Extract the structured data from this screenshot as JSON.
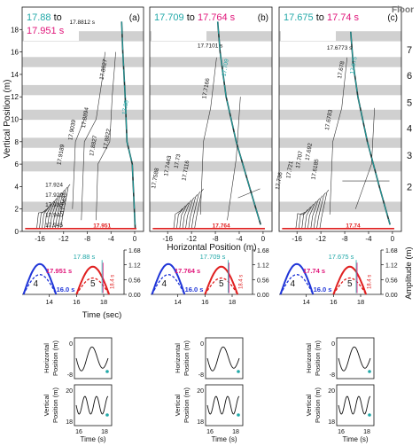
{
  "figure": {
    "floor_header": "Floor",
    "floor_labels": [
      "2",
      "3",
      "4",
      "5",
      "6",
      "7"
    ],
    "main_ylabel": "Vertical Position (m)",
    "main_xlabel": "Horizontal Position (m)",
    "amp_xlabel": "Time (sec)",
    "amp_ylabel": "Amplitude (m)",
    "small_xlabel": "Time (s)",
    "small_ylabel_top": [
      "Horizontal",
      "Position (m)"
    ],
    "small_ylabel_bottom": [
      "Vertical",
      "Position (m)"
    ],
    "colors": {
      "cyan": "#21a8a8",
      "magenta": "#e0157a",
      "red": "#e02020",
      "blue": "#1f35d8",
      "dark_teal": "#1a3a3a",
      "floor_band": "#d0d0d0"
    }
  },
  "chart_data": [
    {
      "type": "line",
      "panel": "(a)",
      "legend_from": "17.88",
      "legend_to": "17.951 s",
      "legend_mid": "to",
      "xlim": [
        -19,
        1.5
      ],
      "ylim": [
        0,
        20
      ],
      "xticks": [
        -16,
        -12,
        -8,
        -4,
        0
      ],
      "yticks": [
        0,
        2,
        4,
        6,
        8,
        10,
        12,
        14,
        16,
        18
      ],
      "floor_y": [
        2.2,
        5.8,
        7.9,
        10.4,
        12.6,
        15.1,
        17.4
      ],
      "curve_labels": [
        {
          "text": "17.8812 s",
          "x": -11,
          "y": 18.5,
          "rot": 0
        },
        {
          "text": "17.8894",
          "x": -8.4,
          "y": 9.2,
          "rot": -80
        },
        {
          "text": "17.8827",
          "x": -5.3,
          "y": 13.5,
          "rot": -80
        },
        {
          "text": "17.8827",
          "x": -7.0,
          "y": 6.7,
          "rot": -80
        },
        {
          "text": "17.8822",
          "x": -4.7,
          "y": 7.3,
          "rot": -80
        },
        {
          "text": "17.9039",
          "x": -10.6,
          "y": 8.1,
          "rot": -80
        },
        {
          "text": "17.9189",
          "x": -12.5,
          "y": 5.9,
          "rot": -80
        },
        {
          "text": "17.924",
          "x": -15.1,
          "y": 4.0,
          "rot": 0
        },
        {
          "text": "17.929",
          "x": -15.1,
          "y": 3.1,
          "rot": 0
        },
        {
          "text": "17.935",
          "x": -15.1,
          "y": 2.2,
          "rot": 0
        },
        {
          "text": "17.940",
          "x": -15.1,
          "y": 1.3,
          "rot": 0
        },
        {
          "text": "17.945",
          "x": -15.1,
          "y": 0.4,
          "rot": 0
        },
        {
          "text": "17.9432",
          "x": -12.0,
          "y": 1.6,
          "rot": -80
        },
        {
          "text": "17.88",
          "x": -1.5,
          "y": 10.4,
          "rot": -80,
          "color": "cyan"
        },
        {
          "text": "17.951",
          "x": -7.0,
          "y": 0.35,
          "rot": 0,
          "color": "red"
        }
      ]
    },
    {
      "type": "line",
      "panel": "(b)",
      "legend_from": "17.709",
      "legend_to": "17.764 s",
      "legend_mid": "to",
      "xlim": [
        -19,
        1.5
      ],
      "ylim": [
        0,
        20
      ],
      "xticks": [
        -16,
        -12,
        -8,
        -4,
        0
      ],
      "floor_y": [
        2.2,
        5.8,
        7.9,
        10.4,
        12.6,
        15.1,
        17.4
      ],
      "curve_labels": [
        {
          "text": "17.7101 s",
          "x": -11,
          "y": 16.4,
          "rot": 0
        },
        {
          "text": "17.7166",
          "x": -9.6,
          "y": 11.8,
          "rot": -80
        },
        {
          "text": "17.7116",
          "x": -13.0,
          "y": 4.5,
          "rot": -80
        },
        {
          "text": "17.73",
          "x": -14.3,
          "y": 5.6,
          "rot": -80
        },
        {
          "text": "17.7443",
          "x": -16.0,
          "y": 4.9,
          "rot": -80
        },
        {
          "text": "17.7588",
          "x": -18.1,
          "y": 3.8,
          "rot": -80
        },
        {
          "text": "17.709",
          "x": -6.3,
          "y": 13.8,
          "rot": -80,
          "color": "cyan"
        },
        {
          "text": "17.764",
          "x": -8.5,
          "y": 0.35,
          "rot": 0,
          "color": "red"
        }
      ]
    },
    {
      "type": "line",
      "panel": "(c)",
      "legend_from": "17.675",
      "legend_to": "17.74 s",
      "legend_mid": "to",
      "xlim": [
        -19,
        1.5
      ],
      "ylim": [
        0,
        20
      ],
      "xticks": [
        -16,
        -12,
        -8,
        -4,
        0
      ],
      "floor_y": [
        2.2,
        5.8,
        7.9,
        10.4,
        12.6,
        15.1,
        17.4
      ],
      "curve_labels": [
        {
          "text": "17.6773 s",
          "x": -11,
          "y": 16.2,
          "rot": 0
        },
        {
          "text": "17.678",
          "x": -8.6,
          "y": 13.6,
          "rot": -80
        },
        {
          "text": "17.6783",
          "x": -10.7,
          "y": 9.0,
          "rot": -80
        },
        {
          "text": "17.692",
          "x": -14.0,
          "y": 6.3,
          "rot": -80
        },
        {
          "text": "17.707",
          "x": -15.6,
          "y": 5.6,
          "rot": -80
        },
        {
          "text": "17.721",
          "x": -17.2,
          "y": 4.7,
          "rot": -80
        },
        {
          "text": "17.736",
          "x": -19.0,
          "y": 3.7,
          "rot": -80
        },
        {
          "text": "17.6185",
          "x": -13.0,
          "y": 4.6,
          "rot": -80
        },
        {
          "text": "17.675",
          "x": -6.5,
          "y": 14.0,
          "rot": -80,
          "color": "cyan"
        },
        {
          "text": "17.74",
          "x": -7.8,
          "y": 0.35,
          "rot": 0,
          "color": "red"
        }
      ]
    },
    {
      "type": "line",
      "panel": "amplitude",
      "xlim": [
        12,
        19.5
      ],
      "ylim": [
        0,
        1.68
      ],
      "xticks": [
        14,
        16,
        18
      ],
      "yticks": [
        "0.00",
        "0.56",
        "1.12",
        "1.68"
      ],
      "panels": [
        {
          "label_cyan": "17.88 s",
          "label_mag": "17.951 s",
          "label_blue": "16.0 s",
          "label_red": "18.4 s",
          "label_4": "4",
          "label_5": "5",
          "cyan_x": 17.88,
          "mag_x": 17.951
        },
        {
          "label_cyan": "17.709 s",
          "label_mag": "17.764 s",
          "label_blue": "16.0 s",
          "label_red": "18.4 s",
          "label_4": "4",
          "label_5": "5",
          "cyan_x": 17.709,
          "mag_x": 17.764
        },
        {
          "label_cyan": "17.675 s",
          "label_mag": "17.74 s",
          "label_blue": "16.0 s",
          "label_red": "18.4 s",
          "label_4": "4",
          "label_5": "5",
          "cyan_x": 17.675,
          "mag_x": 17.74
        }
      ]
    },
    {
      "type": "line",
      "panel": "small-insets",
      "xticks": [
        16,
        18
      ],
      "top_yticks": [
        "0",
        "-8"
      ],
      "bottom_yticks": [
        "20",
        "18"
      ]
    }
  ]
}
